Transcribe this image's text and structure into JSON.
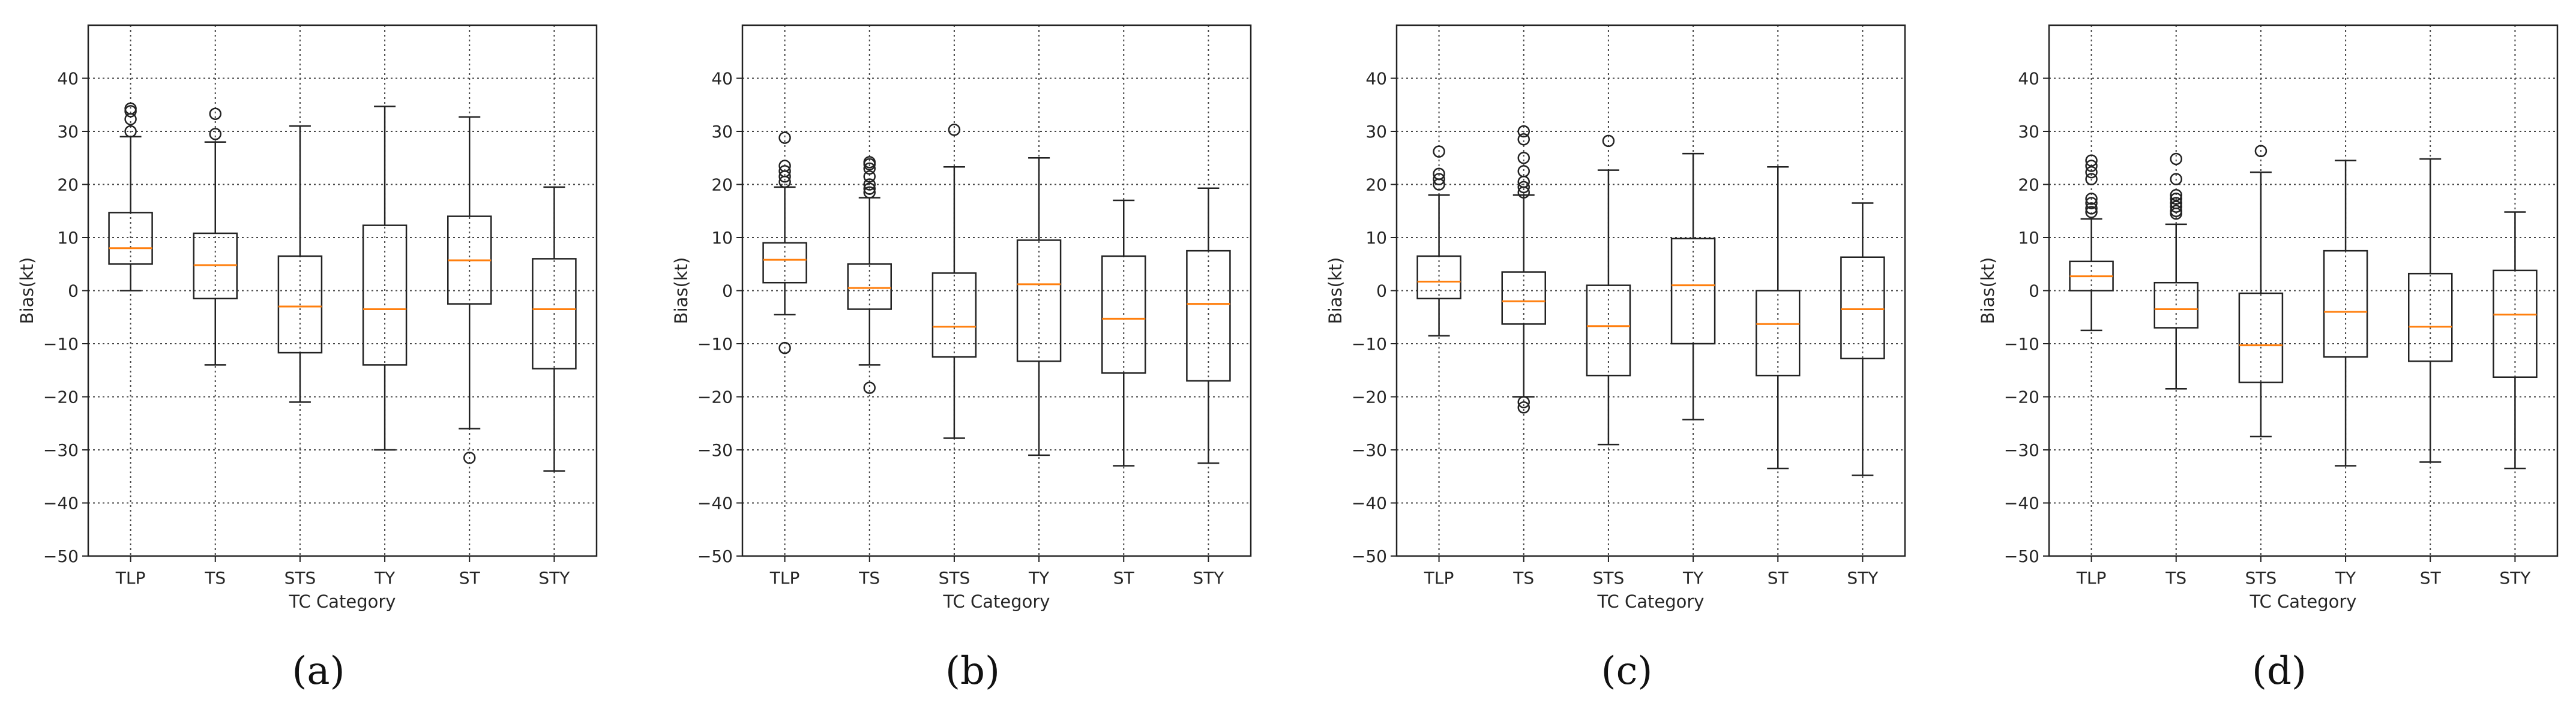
{
  "chart_data": [
    {
      "type": "box",
      "panel_label": "(a)",
      "xlabel": "TC Category",
      "ylabel": "Bias(kt)",
      "ylim": [
        -50,
        50
      ],
      "yticks": [
        -50,
        -40,
        -30,
        -20,
        -10,
        0,
        10,
        20,
        30,
        40
      ],
      "grid": true,
      "median_color": "#ff7f0e",
      "categories": [
        "TLP",
        "TS",
        "STS",
        "TY",
        "ST",
        "STY"
      ],
      "boxes": [
        {
          "category": "TLP",
          "whisker_low": 0,
          "q1": 5,
          "median": 8,
          "q3": 14.7,
          "whisker_high": 29,
          "fliers": [
            30,
            32.3,
            33.8,
            34.3
          ]
        },
        {
          "category": "TS",
          "whisker_low": -14,
          "q1": -1.5,
          "median": 4.8,
          "q3": 10.8,
          "whisker_high": 28,
          "fliers": [
            29.5,
            33.3
          ]
        },
        {
          "category": "STS",
          "whisker_low": -21,
          "q1": -11.7,
          "median": -3,
          "q3": 6.5,
          "whisker_high": 31,
          "fliers": []
        },
        {
          "category": "TY",
          "whisker_low": -30,
          "q1": -14,
          "median": -3.5,
          "q3": 12.3,
          "whisker_high": 34.7,
          "fliers": []
        },
        {
          "category": "ST",
          "whisker_low": -26,
          "q1": -2.5,
          "median": 5.7,
          "q3": 14,
          "whisker_high": 32.7,
          "fliers": [
            -31.5
          ]
        },
        {
          "category": "STY",
          "whisker_low": -34,
          "q1": -14.7,
          "median": -3.5,
          "q3": 6,
          "whisker_high": 19.5,
          "fliers": []
        }
      ]
    },
    {
      "type": "box",
      "panel_label": "(b)",
      "xlabel": "TC Category",
      "ylabel": "Bias(kt)",
      "ylim": [
        -50,
        50
      ],
      "yticks": [
        -50,
        -40,
        -30,
        -20,
        -10,
        0,
        10,
        20,
        30,
        40
      ],
      "grid": true,
      "median_color": "#ff7f0e",
      "categories": [
        "TLP",
        "TS",
        "STS",
        "TY",
        "ST",
        "STY"
      ],
      "boxes": [
        {
          "category": "TLP",
          "whisker_low": -4.5,
          "q1": 1.5,
          "median": 5.8,
          "q3": 9,
          "whisker_high": 19.5,
          "fliers": [
            -10.8,
            20.5,
            21.5,
            22.5,
            23.5,
            28.8
          ]
        },
        {
          "category": "TS",
          "whisker_low": -14,
          "q1": -3.5,
          "median": 0.5,
          "q3": 5,
          "whisker_high": 17.5,
          "fliers": [
            -18.3,
            18.5,
            19.2,
            20,
            21.5,
            23,
            23.8,
            24.2
          ]
        },
        {
          "category": "STS",
          "whisker_low": -27.8,
          "q1": -12.5,
          "median": -6.8,
          "q3": 3.3,
          "whisker_high": 23.3,
          "fliers": [
            30.3
          ]
        },
        {
          "category": "TY",
          "whisker_low": -31,
          "q1": -13.3,
          "median": 1.2,
          "q3": 9.5,
          "whisker_high": 25,
          "fliers": []
        },
        {
          "category": "ST",
          "whisker_low": -33,
          "q1": -15.5,
          "median": -5.3,
          "q3": 6.5,
          "whisker_high": 17,
          "fliers": []
        },
        {
          "category": "STY",
          "whisker_low": -32.5,
          "q1": -17,
          "median": -2.5,
          "q3": 7.5,
          "whisker_high": 19.3,
          "fliers": []
        }
      ]
    },
    {
      "type": "box",
      "panel_label": "(c)",
      "xlabel": "TC Category",
      "ylabel": "Bias(kt)",
      "ylim": [
        -50,
        50
      ],
      "yticks": [
        -50,
        -40,
        -30,
        -20,
        -10,
        0,
        10,
        20,
        30,
        40
      ],
      "grid": true,
      "median_color": "#ff7f0e",
      "categories": [
        "TLP",
        "TS",
        "STS",
        "TY",
        "ST",
        "STY"
      ],
      "boxes": [
        {
          "category": "TLP",
          "whisker_low": -8.5,
          "q1": -1.5,
          "median": 1.7,
          "q3": 6.5,
          "whisker_high": 18,
          "fliers": [
            20,
            21,
            22,
            26.2
          ]
        },
        {
          "category": "TS",
          "whisker_low": -20,
          "q1": -6.3,
          "median": -2,
          "q3": 3.5,
          "whisker_high": 18,
          "fliers": [
            -22,
            -21,
            18.5,
            19.5,
            20.5,
            22.5,
            25,
            28.5,
            30
          ]
        },
        {
          "category": "STS",
          "whisker_low": -29,
          "q1": -16,
          "median": -6.7,
          "q3": 1,
          "whisker_high": 22.7,
          "fliers": [
            28.2
          ]
        },
        {
          "category": "TY",
          "whisker_low": -24.3,
          "q1": -10,
          "median": 1,
          "q3": 9.8,
          "whisker_high": 25.8,
          "fliers": []
        },
        {
          "category": "ST",
          "whisker_low": -33.5,
          "q1": -16,
          "median": -6.3,
          "q3": 0,
          "whisker_high": 23.3,
          "fliers": []
        },
        {
          "category": "STY",
          "whisker_low": -34.8,
          "q1": -12.8,
          "median": -3.5,
          "q3": 6.3,
          "whisker_high": 16.5,
          "fliers": []
        }
      ]
    },
    {
      "type": "box",
      "panel_label": "(d)",
      "xlabel": "TC Category",
      "ylabel": "Bias(kt)",
      "ylim": [
        -50,
        50
      ],
      "yticks": [
        -50,
        -40,
        -30,
        -20,
        -10,
        0,
        10,
        20,
        30,
        40
      ],
      "grid": true,
      "median_color": "#ff7f0e",
      "categories": [
        "TLP",
        "TS",
        "STS",
        "TY",
        "ST",
        "STY"
      ],
      "boxes": [
        {
          "category": "TLP",
          "whisker_low": -7.5,
          "q1": 0,
          "median": 2.7,
          "q3": 5.5,
          "whisker_high": 13.5,
          "fliers": [
            14.8,
            15.5,
            16.5,
            17.3,
            21,
            22.3,
            23.5,
            24.5
          ]
        },
        {
          "category": "TS",
          "whisker_low": -18.5,
          "q1": -7,
          "median": -3.5,
          "q3": 1.5,
          "whisker_high": 12.5,
          "fliers": [
            14.5,
            15,
            15.8,
            16.5,
            17.3,
            18,
            21,
            24.8
          ]
        },
        {
          "category": "STS",
          "whisker_low": -27.5,
          "q1": -17.3,
          "median": -10.3,
          "q3": -0.5,
          "whisker_high": 22.3,
          "fliers": [
            26.3
          ]
        },
        {
          "category": "TY",
          "whisker_low": -33,
          "q1": -12.5,
          "median": -4,
          "q3": 7.5,
          "whisker_high": 24.5,
          "fliers": []
        },
        {
          "category": "ST",
          "whisker_low": -32.3,
          "q1": -13.3,
          "median": -6.8,
          "q3": 3.2,
          "whisker_high": 24.8,
          "fliers": []
        },
        {
          "category": "STY",
          "whisker_low": -33.5,
          "q1": -16.3,
          "median": -4.5,
          "q3": 3.8,
          "whisker_high": 14.8,
          "fliers": []
        }
      ]
    }
  ]
}
